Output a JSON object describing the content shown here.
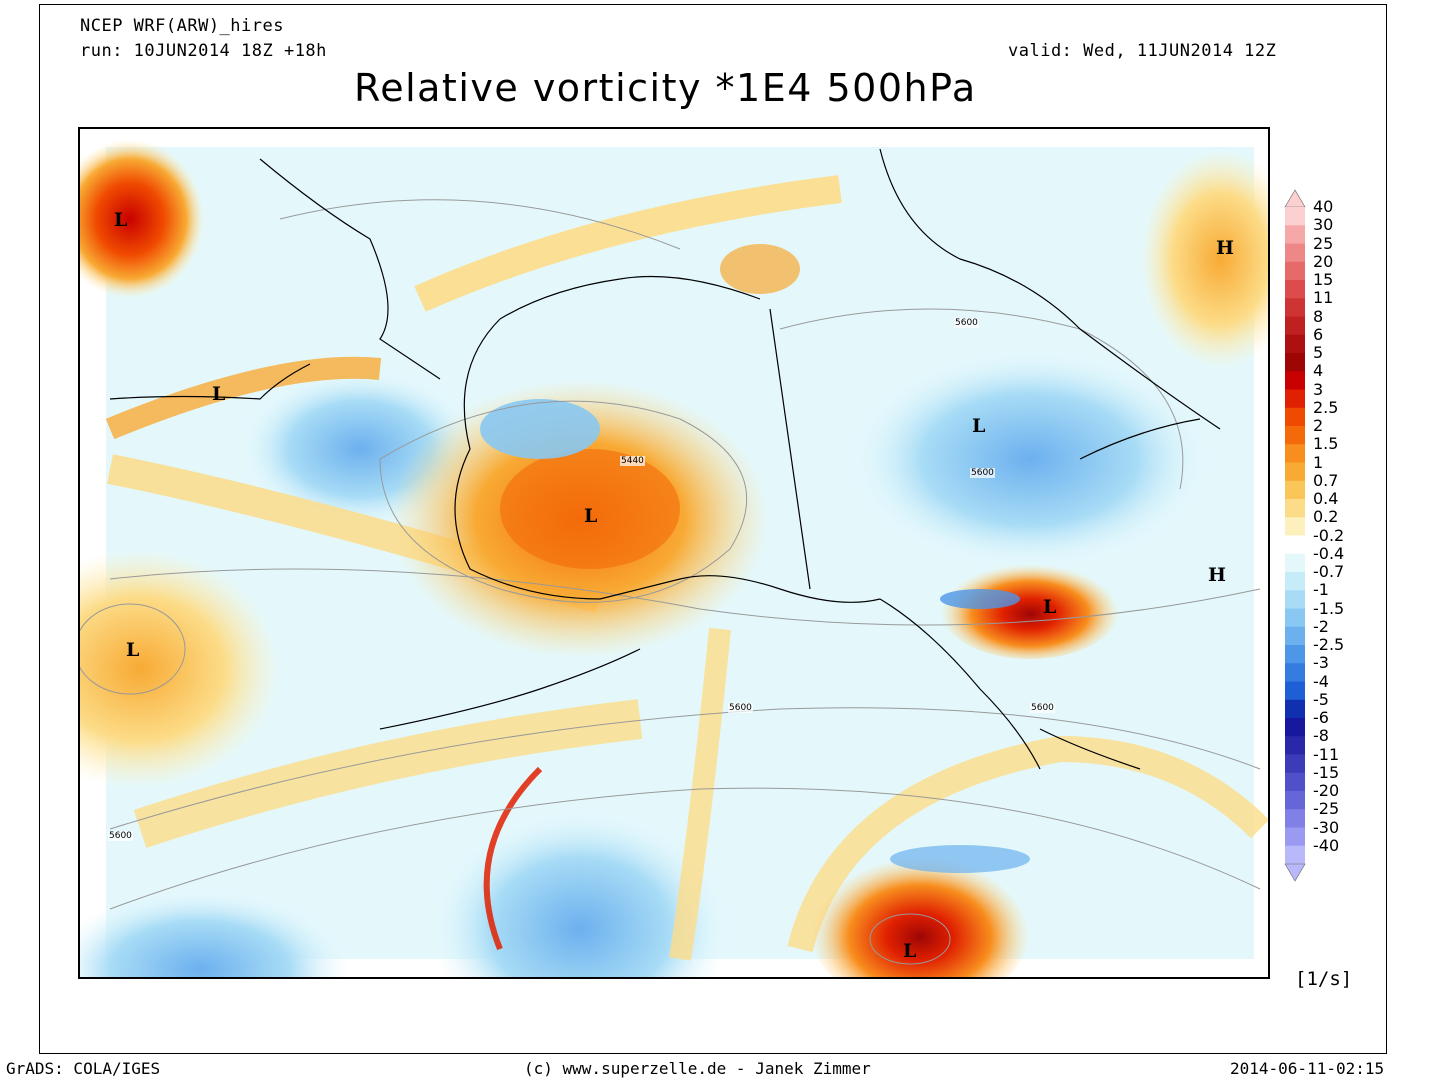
{
  "header": {
    "model": "NCEP WRF(ARW)_hires",
    "run": "run: 10JUN2014 18Z +18h",
    "valid": "valid: Wed, 11JUN2014 12Z",
    "title": "Relative vorticity *1E4 500hPa"
  },
  "map": {
    "pressure_systems": [
      {
        "symbol": "L"
      },
      {
        "symbol": "L"
      },
      {
        "symbol": "L"
      },
      {
        "symbol": "L"
      },
      {
        "symbol": "L"
      },
      {
        "symbol": "L"
      },
      {
        "symbol": "L"
      },
      {
        "symbol": "H"
      },
      {
        "symbol": "H"
      }
    ],
    "contour_labels": [
      "5600",
      "5440",
      "5600",
      "5600",
      "5600",
      "5600"
    ]
  },
  "legend": {
    "levels": [
      "40",
      "30",
      "25",
      "20",
      "15",
      "11",
      "8",
      "6",
      "5",
      "4",
      "3",
      "2.5",
      "2",
      "1.5",
      "1",
      "0.7",
      "0.4",
      "0.2",
      "-0.2",
      "-0.4",
      "-0.7",
      "-1",
      "-1.5",
      "-2",
      "-2.5",
      "-3",
      "-4",
      "-5",
      "-6",
      "-8",
      "-11",
      "-15",
      "-20",
      "-25",
      "-30",
      "-40"
    ],
    "colors": [
      "#fcd0d0",
      "#f6a8a8",
      "#ee8888",
      "#e66a6a",
      "#dc4c4c",
      "#cf3434",
      "#bf2020",
      "#ac1010",
      "#9e0606",
      "#c80000",
      "#e02000",
      "#f04a00",
      "#f46a0a",
      "#f88e1e",
      "#f8aa34",
      "#fac65a",
      "#fcdc88",
      "#fef0bc",
      "#ffffff",
      "#e4f8fc",
      "#c6ecfa",
      "#a8dcf6",
      "#88c8f2",
      "#6cb0ee",
      "#4e96e8",
      "#347ce0",
      "#1e5fd6",
      "#1030b0",
      "#18189e",
      "#2a28a8",
      "#3c3cb8",
      "#5050c8",
      "#6666d8",
      "#8080e6",
      "#9a9af2",
      "#b8b8fa"
    ],
    "unit": "[1/s]"
  },
  "footer": {
    "left": "GrADS: COLA/IGES",
    "center": "(c) www.superzelle.de - Janek Zimmer",
    "right": "2014-06-11-02:15"
  }
}
